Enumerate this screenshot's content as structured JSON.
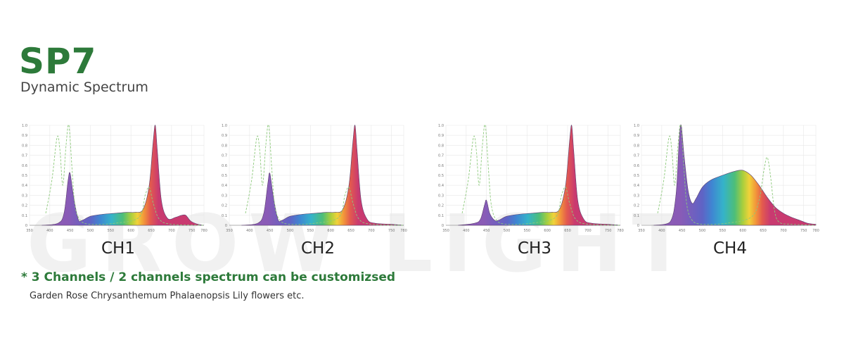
{
  "header": {
    "title": "SP7",
    "subtitle": "Dynamic Spectrum",
    "watermark": "GROW LIGHT"
  },
  "note": "* 3 Channels / 2 channels spectrum can be customizsed",
  "flowers": "Garden Rose Chrysanthemum Phalaenopsis Lily  flowers etc.",
  "colors": {
    "brand_green": "#2d7a3a",
    "reference_curve": "#8cc97a",
    "purple": "#8e5cb8",
    "magenta": "#c93a70"
  },
  "chart_data": [
    {
      "type": "area",
      "label": "CH1",
      "xlim": [
        350,
        780
      ],
      "ylim": [
        0,
        1.0
      ],
      "xticks": [
        "350",
        "400",
        "450",
        "500",
        "550",
        "600",
        "650",
        "700",
        "750",
        "780"
      ],
      "yticks": [
        "0",
        "0.1",
        "0.2",
        "0.3",
        "0.4",
        "0.5",
        "0.6",
        "0.7",
        "0.8",
        "0.9",
        "1.0"
      ],
      "grid": true,
      "series": [
        {
          "name": "",
          "points": [
            [
              380,
              0
            ],
            [
              420,
              0.02
            ],
            [
              435,
              0.12
            ],
            [
              445,
              0.45
            ],
            [
              450,
              0.52
            ],
            [
              458,
              0.3
            ],
            [
              470,
              0.06
            ],
            [
              480,
              0.05
            ],
            [
              500,
              0.09
            ],
            [
              530,
              0.11
            ],
            [
              560,
              0.12
            ],
            [
              590,
              0.13
            ],
            [
              610,
              0.13
            ],
            [
              630,
              0.16
            ],
            [
              645,
              0.4
            ],
            [
              655,
              0.85
            ],
            [
              660,
              1.0
            ],
            [
              665,
              0.75
            ],
            [
              675,
              0.25
            ],
            [
              690,
              0.07
            ],
            [
              710,
              0.08
            ],
            [
              725,
              0.1
            ],
            [
              735,
              0.1
            ],
            [
              748,
              0.04
            ],
            [
              765,
              0.01
            ],
            [
              780,
              0
            ]
          ]
        },
        {
          "name": "",
          "points": [
            [
              390,
              0.12
            ],
            [
              405,
              0.45
            ],
            [
              418,
              0.88
            ],
            [
              425,
              0.75
            ],
            [
              432,
              0.4
            ],
            [
              440,
              0.8
            ],
            [
              447,
              1.0
            ],
            [
              455,
              0.55
            ],
            [
              462,
              0.2
            ],
            [
              475,
              0.05
            ],
            [
              500,
              0.01
            ],
            [
              560,
              0.02
            ],
            [
              620,
              0.08
            ],
            [
              635,
              0.3
            ],
            [
              645,
              0.38
            ],
            [
              655,
              0.22
            ],
            [
              670,
              0.06
            ],
            [
              700,
              0.01
            ],
            [
              780,
              0
            ]
          ]
        }
      ]
    },
    {
      "type": "area",
      "label": "CH2",
      "xlim": [
        350,
        780
      ],
      "ylim": [
        0,
        1.0
      ],
      "xticks": [
        "350",
        "400",
        "450",
        "500",
        "550",
        "600",
        "650",
        "700",
        "750",
        "780"
      ],
      "yticks": [
        "0",
        "0.1",
        "0.2",
        "0.3",
        "0.4",
        "0.5",
        "0.6",
        "0.7",
        "0.8",
        "0.9",
        "1.0"
      ],
      "grid": true,
      "series": [
        {
          "name": "",
          "points": [
            [
              380,
              0
            ],
            [
              420,
              0.02
            ],
            [
              435,
              0.12
            ],
            [
              445,
              0.42
            ],
            [
              450,
              0.52
            ],
            [
              458,
              0.3
            ],
            [
              470,
              0.06
            ],
            [
              480,
              0.05
            ],
            [
              500,
              0.09
            ],
            [
              530,
              0.11
            ],
            [
              560,
              0.12
            ],
            [
              590,
              0.13
            ],
            [
              610,
              0.13
            ],
            [
              630,
              0.16
            ],
            [
              645,
              0.4
            ],
            [
              655,
              0.85
            ],
            [
              660,
              1.0
            ],
            [
              665,
              0.75
            ],
            [
              675,
              0.25
            ],
            [
              690,
              0.06
            ],
            [
              710,
              0.02
            ],
            [
              750,
              0.01
            ],
            [
              780,
              0
            ]
          ]
        },
        {
          "name": "",
          "points": [
            [
              390,
              0.12
            ],
            [
              405,
              0.45
            ],
            [
              418,
              0.88
            ],
            [
              425,
              0.75
            ],
            [
              432,
              0.4
            ],
            [
              440,
              0.8
            ],
            [
              447,
              1.0
            ],
            [
              455,
              0.55
            ],
            [
              462,
              0.2
            ],
            [
              475,
              0.05
            ],
            [
              500,
              0.01
            ],
            [
              560,
              0.02
            ],
            [
              620,
              0.08
            ],
            [
              635,
              0.3
            ],
            [
              645,
              0.38
            ],
            [
              655,
              0.22
            ],
            [
              670,
              0.06
            ],
            [
              700,
              0.01
            ],
            [
              780,
              0
            ]
          ]
        }
      ]
    },
    {
      "type": "area",
      "label": "CH3",
      "xlim": [
        350,
        780
      ],
      "ylim": [
        0,
        1.0
      ],
      "xticks": [
        "350",
        "400",
        "450",
        "500",
        "550",
        "600",
        "650",
        "700",
        "750",
        "780"
      ],
      "yticks": [
        "0",
        "0.1",
        "0.2",
        "0.3",
        "0.4",
        "0.5",
        "0.6",
        "0.7",
        "0.8",
        "0.9",
        "1.0"
      ],
      "grid": true,
      "series": [
        {
          "name": "",
          "points": [
            [
              380,
              0
            ],
            [
              420,
              0.02
            ],
            [
              435,
              0.06
            ],
            [
              445,
              0.2
            ],
            [
              450,
              0.25
            ],
            [
              458,
              0.12
            ],
            [
              470,
              0.05
            ],
            [
              480,
              0.05
            ],
            [
              500,
              0.09
            ],
            [
              530,
              0.11
            ],
            [
              560,
              0.12
            ],
            [
              590,
              0.13
            ],
            [
              610,
              0.13
            ],
            [
              630,
              0.16
            ],
            [
              645,
              0.4
            ],
            [
              655,
              0.85
            ],
            [
              660,
              1.0
            ],
            [
              665,
              0.75
            ],
            [
              675,
              0.25
            ],
            [
              690,
              0.06
            ],
            [
              710,
              0.02
            ],
            [
              750,
              0.01
            ],
            [
              780,
              0
            ]
          ]
        },
        {
          "name": "",
          "points": [
            [
              390,
              0.12
            ],
            [
              405,
              0.45
            ],
            [
              418,
              0.88
            ],
            [
              425,
              0.75
            ],
            [
              432,
              0.4
            ],
            [
              440,
              0.8
            ],
            [
              447,
              1.0
            ],
            [
              455,
              0.55
            ],
            [
              462,
              0.2
            ],
            [
              475,
              0.05
            ],
            [
              500,
              0.01
            ],
            [
              560,
              0.02
            ],
            [
              620,
              0.08
            ],
            [
              635,
              0.3
            ],
            [
              645,
              0.38
            ],
            [
              655,
              0.22
            ],
            [
              670,
              0.06
            ],
            [
              700,
              0.01
            ],
            [
              780,
              0
            ]
          ]
        }
      ]
    },
    {
      "type": "area",
      "label": "CH4",
      "xlim": [
        350,
        780
      ],
      "ylim": [
        0,
        1.0
      ],
      "xticks": [
        "350",
        "400",
        "450",
        "500",
        "550",
        "600",
        "650",
        "700",
        "750",
        "780"
      ],
      "yticks": [
        "0",
        "0.1",
        "0.2",
        "0.3",
        "0.4",
        "0.5",
        "0.6",
        "0.7",
        "0.8",
        "0.9",
        "1.0"
      ],
      "grid": true,
      "series": [
        {
          "name": "",
          "points": [
            [
              380,
              0
            ],
            [
              420,
              0.03
            ],
            [
              435,
              0.3
            ],
            [
              443,
              0.85
            ],
            [
              448,
              1.0
            ],
            [
              455,
              0.7
            ],
            [
              465,
              0.35
            ],
            [
              475,
              0.22
            ],
            [
              485,
              0.27
            ],
            [
              500,
              0.38
            ],
            [
              520,
              0.45
            ],
            [
              550,
              0.5
            ],
            [
              580,
              0.54
            ],
            [
              600,
              0.55
            ],
            [
              620,
              0.5
            ],
            [
              640,
              0.4
            ],
            [
              660,
              0.28
            ],
            [
              680,
              0.18
            ],
            [
              700,
              0.12
            ],
            [
              720,
              0.08
            ],
            [
              740,
              0.05
            ],
            [
              760,
              0.02
            ],
            [
              780,
              0.01
            ]
          ]
        },
        {
          "name": "",
          "points": [
            [
              390,
              0.12
            ],
            [
              405,
              0.45
            ],
            [
              418,
              0.88
            ],
            [
              425,
              0.75
            ],
            [
              432,
              0.4
            ],
            [
              440,
              0.8
            ],
            [
              447,
              1.0
            ],
            [
              455,
              0.55
            ],
            [
              462,
              0.2
            ],
            [
              475,
              0.05
            ],
            [
              500,
              0.01
            ],
            [
              560,
              0.02
            ],
            [
              620,
              0.08
            ],
            [
              640,
              0.25
            ],
            [
              652,
              0.55
            ],
            [
              660,
              0.68
            ],
            [
              668,
              0.5
            ],
            [
              678,
              0.15
            ],
            [
              690,
              0.03
            ],
            [
              720,
              0.01
            ],
            [
              780,
              0
            ]
          ]
        }
      ]
    }
  ]
}
